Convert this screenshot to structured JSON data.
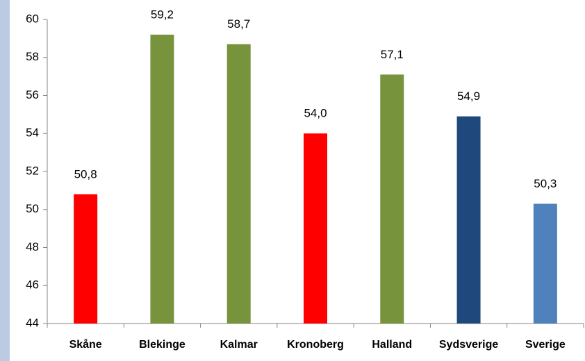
{
  "chart_data": {
    "type": "bar",
    "categories": [
      "Skåne",
      "Blekinge",
      "Kalmar",
      "Kronoberg",
      "Halland",
      "Sydsverige",
      "Sverige"
    ],
    "values": [
      50.8,
      59.2,
      58.7,
      54.0,
      57.1,
      54.9,
      50.3
    ],
    "value_labels": [
      "50,8",
      "59,2",
      "58,7",
      "54,0",
      "57,1",
      "54,9",
      "50,3"
    ],
    "colors": [
      "#ff0000",
      "#77933c",
      "#77933c",
      "#ff0000",
      "#77933c",
      "#1f497d",
      "#4f81bd"
    ],
    "ylim": [
      44,
      60
    ],
    "yticks": [
      44,
      46,
      48,
      50,
      52,
      54,
      56,
      58,
      60
    ],
    "grid": false
  }
}
